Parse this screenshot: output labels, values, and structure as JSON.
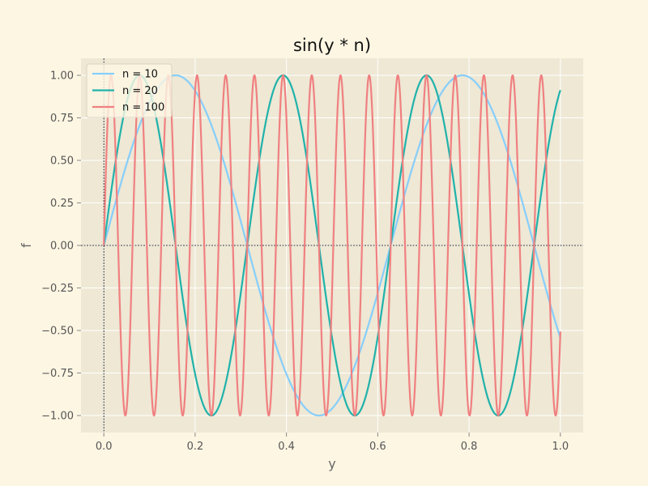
{
  "chart_data": {
    "type": "line",
    "title": "sin(y * n)",
    "xlabel": "y",
    "ylabel": "f",
    "xlim": [
      -0.05,
      1.05
    ],
    "ylim": [
      -1.1,
      1.1
    ],
    "x_ticks": [
      "0.0",
      "0.2",
      "0.4",
      "0.6",
      "0.8",
      "1.0"
    ],
    "y_ticks": [
      "−1.00",
      "−0.75",
      "−0.50",
      "−0.25",
      "0.00",
      "0.25",
      "0.50",
      "0.75",
      "1.00"
    ],
    "grid": true,
    "legend_position": "top-left",
    "reference_lines": {
      "horizontal_y": 0,
      "vertical_x": 0,
      "style": "dotted-black"
    },
    "function": "sin(y * n)",
    "x_range": [
      0,
      1
    ],
    "series": [
      {
        "name": "n = 10",
        "n": 10,
        "color": "#87cefa"
      },
      {
        "name": "n = 20",
        "n": 20,
        "color": "#20b2aa"
      },
      {
        "name": "n = 100",
        "n": 100,
        "color": "#f08080"
      }
    ]
  },
  "colors": {
    "figure_bg": "#fdf6e3",
    "axes_bg": "#eee8d5",
    "grid": "#ffffff"
  }
}
